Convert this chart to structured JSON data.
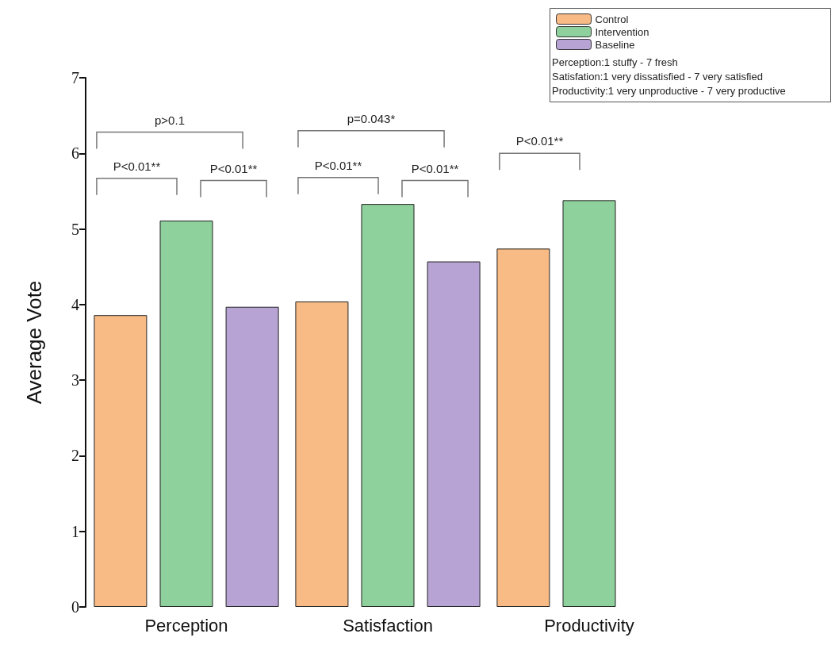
{
  "chart_data": {
    "type": "bar",
    "ylabel": "Average Vote",
    "categories": [
      "Perception",
      "Satisfaction",
      "Productivity"
    ],
    "series": [
      {
        "name": "Control",
        "color": "#f8bb85",
        "values": [
          3.86,
          4.04,
          4.74
        ]
      },
      {
        "name": "Intervention",
        "color": "#8fd19c",
        "values": [
          5.11,
          5.33,
          5.38
        ]
      },
      {
        "name": "Baseline",
        "color": "#b7a3d4",
        "values": [
          3.97,
          4.57,
          null
        ]
      }
    ],
    "ylim": [
      0,
      7
    ],
    "yticks": [
      0,
      1,
      2,
      3,
      4,
      5,
      6,
      7
    ],
    "grid": false,
    "legend": "top right",
    "annotations": [
      "p>0.1",
      "P<0.01**",
      "P<0.01**",
      "p=0.043*",
      "P<0.01**",
      "P<0.01**",
      "P<0.01**",
      "Perception:1 stuffy - 7 fresh",
      "Satisfation:1 very dissatisfied - 7 very satisfied",
      "Productivity:1 very unproductive - 7 very productive"
    ]
  }
}
